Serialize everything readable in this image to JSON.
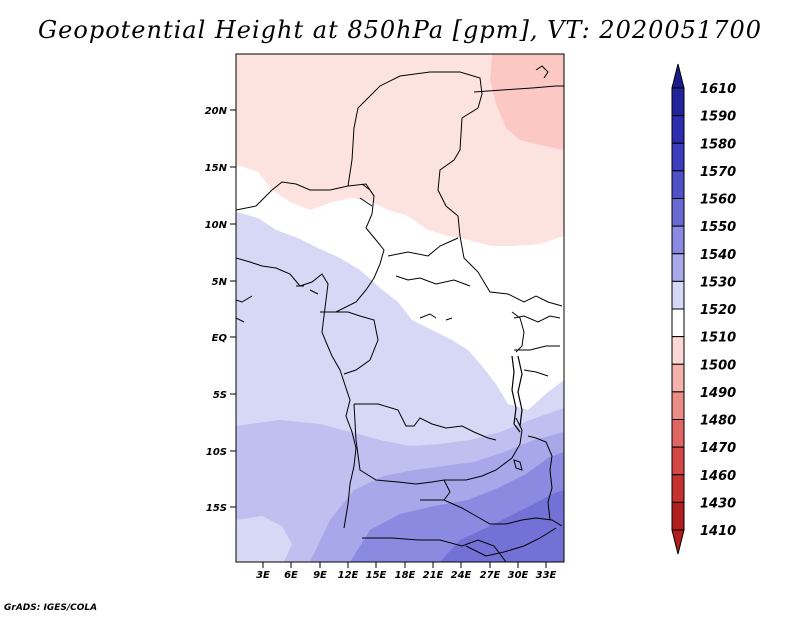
{
  "title": "Geopotential Height at 850hPa [gpm], VT: 2020051700",
  "credit": "GrADS: IGES/COLA",
  "map": {
    "lat_labels": [
      "20N",
      "15N",
      "10N",
      "5N",
      "EQ",
      "5S",
      "10S",
      "15S"
    ],
    "lon_labels": [
      "3E",
      "6E",
      "9E",
      "12E",
      "15E",
      "18E",
      "21E",
      "24E",
      "27E",
      "30E",
      "33E"
    ]
  },
  "legend": {
    "levels": [
      "1610",
      "1590",
      "1580",
      "1570",
      "1560",
      "1550",
      "1540",
      "1530",
      "1520",
      "1510",
      "1500",
      "1490",
      "1480",
      "1470",
      "1460",
      "1430",
      "1410"
    ],
    "colors": [
      "#1a1a8c",
      "#23239e",
      "#2d2db0",
      "#3c3cbe",
      "#5050c8",
      "#6a6ad4",
      "#8a8ae0",
      "#aaaaea",
      "#d7d7f6",
      "#ffffff",
      "#fcd9d6",
      "#f6b2ad",
      "#ec8c86",
      "#e06663",
      "#d44744",
      "#c63230",
      "#b01e1e"
    ]
  }
}
